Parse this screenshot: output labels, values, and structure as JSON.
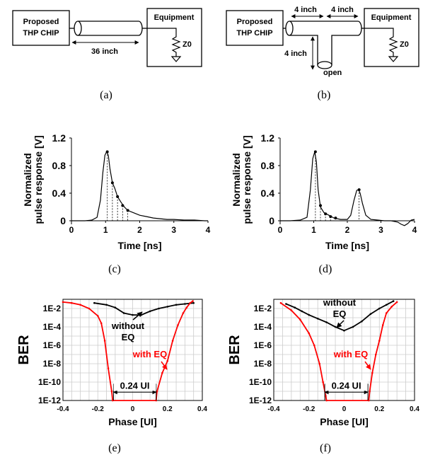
{
  "diagram_a": {
    "caption": "(a)",
    "chip_line1": "Proposed",
    "chip_line2": "THP CHIP",
    "equipment": "Equipment",
    "z0": "Z0",
    "length": "36 inch"
  },
  "diagram_b": {
    "caption": "(b)",
    "chip_line1": "Proposed",
    "chip_line2": "THP CHIP",
    "equipment": "Equipment",
    "z0": "Z0",
    "len_left": "4 inch",
    "len_right": "4 inch",
    "len_stub": "4 inch",
    "open": "open"
  },
  "chart_data": [
    {
      "id": "c",
      "caption": "(c)",
      "type": "line",
      "xlabel": "Time [ns]",
      "ylabel_line1": "Normalized",
      "ylabel_line2": "pulse response [V]",
      "xlim": [
        0,
        4
      ],
      "ylim": [
        -0.05,
        1.2
      ],
      "xticks": [
        "0",
        "1",
        "2",
        "3",
        "4"
      ],
      "yticks": [
        "0",
        "0.4",
        "0.8",
        "1.2"
      ],
      "series": [
        {
          "x": [
            0,
            0.2,
            0.4,
            0.6,
            0.75,
            0.85,
            0.92,
            0.98,
            1.03,
            1.08,
            1.13,
            1.2,
            1.27,
            1.35,
            1.45,
            1.55,
            1.65,
            1.8,
            2.0,
            2.2,
            2.4,
            2.6,
            2.8,
            3.0,
            3.3,
            3.6,
            3.9,
            4.0
          ],
          "y": [
            0,
            0,
            0,
            0.01,
            0.05,
            0.3,
            0.7,
            0.95,
            1.0,
            0.95,
            0.75,
            0.55,
            0.47,
            0.35,
            0.27,
            0.2,
            0.15,
            0.12,
            0.08,
            0.06,
            0.04,
            0.03,
            0.02,
            0.02,
            0.01,
            0.01,
            0.0,
            0.0
          ]
        }
      ],
      "markers": {
        "x": [
          1.05,
          1.2,
          1.35,
          1.5,
          1.65
        ],
        "y": [
          1.0,
          0.55,
          0.35,
          0.22,
          0.15
        ]
      }
    },
    {
      "id": "d",
      "caption": "(d)",
      "type": "line",
      "xlabel": "Time [ns]",
      "ylabel_line1": "Normalized",
      "ylabel_line2": "pulse response [V]",
      "xlim": [
        0,
        4
      ],
      "ylim": [
        -0.05,
        1.2
      ],
      "xticks": [
        "0",
        "1",
        "2",
        "3",
        "4"
      ],
      "yticks": [
        "0",
        "0.4",
        "0.8",
        "1.2"
      ],
      "series": [
        {
          "x": [
            0,
            0.3,
            0.6,
            0.8,
            0.9,
            0.97,
            1.03,
            1.08,
            1.13,
            1.2,
            1.3,
            1.45,
            1.6,
            1.8,
            2.0,
            2.1,
            2.2,
            2.28,
            2.33,
            2.38,
            2.45,
            2.55,
            2.7,
            2.9,
            3.1,
            3.3,
            3.5,
            3.6,
            3.7,
            3.8,
            3.9,
            4.0
          ],
          "y": [
            0,
            0,
            0.01,
            0.05,
            0.45,
            0.9,
            1.0,
            0.85,
            0.45,
            0.2,
            0.12,
            0.08,
            0.04,
            0.02,
            0.02,
            0.08,
            0.3,
            0.44,
            0.45,
            0.4,
            0.25,
            0.08,
            0.02,
            0.01,
            0.0,
            0.0,
            -0.02,
            -0.05,
            -0.07,
            -0.04,
            0.01,
            0.02
          ]
        }
      ],
      "markers": {
        "x": [
          1.05,
          1.2,
          1.35,
          1.5,
          1.65,
          2.35
        ],
        "y": [
          1.0,
          0.22,
          0.1,
          0.06,
          0.04,
          0.45
        ]
      }
    },
    {
      "id": "e",
      "caption": "(e)",
      "type": "line",
      "xlabel": "Phase [UI]",
      "ylabel": "BER",
      "log_y": true,
      "xlim": [
        -0.4,
        0.4
      ],
      "ylim_exp": [
        -12,
        -1
      ],
      "xticks": [
        "-0.4",
        "-0.2",
        "0",
        "0.2",
        "0.4"
      ],
      "yticks": [
        "1E-12",
        "1E-10",
        "1E-8",
        "1E-6",
        "1E-4",
        "1E-2"
      ],
      "grid": true,
      "series": [
        {
          "name": "without EQ",
          "color": "#000000",
          "x": [
            -0.22,
            -0.15,
            -0.1,
            -0.05,
            0.0,
            0.05,
            0.1,
            0.15,
            0.2,
            0.25,
            0.3,
            0.35
          ],
          "log10_y": [
            -1.4,
            -1.6,
            -1.9,
            -2.5,
            -2.7,
            -2.7,
            -2.3,
            -2.0,
            -1.8,
            -1.6,
            -1.5,
            -1.4
          ]
        },
        {
          "name": "with EQ",
          "color": "#ff0000",
          "x": [
            -0.4,
            -0.35,
            -0.3,
            -0.25,
            -0.2,
            -0.18,
            -0.16,
            -0.14,
            -0.12,
            -0.115,
            0.135,
            0.14,
            0.17,
            0.2,
            0.23,
            0.26,
            0.29,
            0.31,
            0.33,
            0.345
          ],
          "log10_y": [
            -1.3,
            -1.4,
            -1.6,
            -2.0,
            -2.8,
            -3.6,
            -5.5,
            -8.5,
            -11.0,
            -12.0,
            -12.0,
            -11.0,
            -9.0,
            -7.7,
            -5.5,
            -3.8,
            -2.5,
            -1.9,
            -1.4,
            -1.2
          ]
        }
      ],
      "annotations": {
        "without_line1": "without",
        "without_line2": "EQ",
        "with": "with EQ",
        "width": "0.24 UI"
      }
    },
    {
      "id": "f",
      "caption": "(f)",
      "type": "line",
      "xlabel": "Phase [UI]",
      "ylabel": "BER",
      "log_y": true,
      "xlim": [
        -0.4,
        0.4
      ],
      "ylim_exp": [
        -12,
        -1
      ],
      "xticks": [
        "-0.4",
        "-0.2",
        "0",
        "0.2",
        "0.4"
      ],
      "yticks": [
        "1E-12",
        "1E-10",
        "1E-8",
        "1E-6",
        "1E-4",
        "1E-2"
      ],
      "grid": true,
      "series": [
        {
          "name": "without EQ",
          "color": "#000000",
          "x": [
            -0.33,
            -0.28,
            -0.24,
            -0.2,
            -0.15,
            -0.1,
            -0.05,
            0.0,
            0.05,
            0.1,
            0.15,
            0.2,
            0.24,
            0.28
          ],
          "log10_y": [
            -1.5,
            -1.9,
            -2.3,
            -2.7,
            -3.1,
            -3.5,
            -4.0,
            -4.4,
            -4.0,
            -3.4,
            -2.6,
            -2.0,
            -1.6,
            -1.2
          ]
        },
        {
          "name": "with EQ",
          "color": "#ff0000",
          "x": [
            -0.36,
            -0.3,
            -0.25,
            -0.2,
            -0.17,
            -0.14,
            -0.12,
            -0.105,
            -0.1,
            0.14,
            0.145,
            0.16,
            0.18,
            0.2,
            0.22,
            0.24,
            0.27,
            0.3
          ],
          "log10_y": [
            -1.4,
            -2.2,
            -3.2,
            -4.7,
            -6.0,
            -8.0,
            -10.0,
            -11.5,
            -12.0,
            -12.0,
            -11.0,
            -9.0,
            -7.0,
            -5.5,
            -3.8,
            -2.5,
            -1.8,
            -1.3
          ]
        }
      ],
      "annotations": {
        "without_line1": "without",
        "without_line2": "EQ",
        "with": "with EQ",
        "width": "0.24 UI"
      }
    }
  ]
}
